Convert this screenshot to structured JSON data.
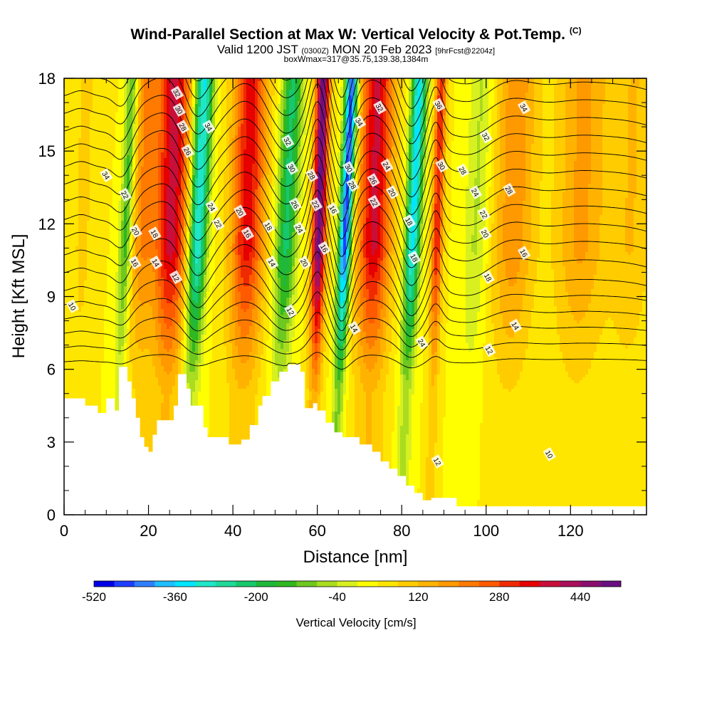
{
  "header": {
    "title": "Wind-Parallel Section at Max W: Vertical Velocity & Pot.Temp.",
    "copyright": "(C)",
    "valid_prefix": "Valid 1200 JST",
    "valid_utc": "(0300Z)",
    "valid_date": "MON 20 Feb 2023",
    "forecast": "[9hrFcst@2204z]",
    "box_info": "boxWmax=317@35.75,139.38,1384m"
  },
  "chart_data": {
    "type": "heatmap",
    "xlabel": "Distance [nm]",
    "ylabel": "Height [Kft MSL]",
    "xlim": [
      0,
      138
    ],
    "ylim": [
      0,
      18
    ],
    "xticks": [
      0,
      20,
      40,
      60,
      80,
      100,
      120
    ],
    "yticks": [
      0,
      3,
      6,
      9,
      12,
      15,
      18
    ],
    "colorbar": {
      "title": "Vertical Velocity [cm/s]",
      "range": [
        -520,
        520
      ],
      "tick_values": [
        -520,
        -360,
        -200,
        -40,
        120,
        280,
        440
      ],
      "colors": [
        "#0000e6",
        "#1f3fff",
        "#2f7fff",
        "#1fbfff",
        "#00e6ff",
        "#1fe6c8",
        "#1ed99a",
        "#17c86c",
        "#1fb83a",
        "#2fb81f",
        "#6fc81f",
        "#aadc1f",
        "#d8f01f",
        "#ffff00",
        "#ffe600",
        "#ffcc00",
        "#ffb300",
        "#ff9900",
        "#ff7a00",
        "#ff5a00",
        "#f02a00",
        "#e60000",
        "#c80f3a",
        "#aa0f5a",
        "#8a0f6e",
        "#6a0f82"
      ]
    },
    "updrafts": [
      {
        "x": 4,
        "w": 2,
        "v": 60
      },
      {
        "x": 18,
        "w": 3,
        "v": 150
      },
      {
        "x": 25,
        "w": 4,
        "v": 340
      },
      {
        "x": 43,
        "w": 4,
        "v": 300
      },
      {
        "x": 60,
        "w": 1.6,
        "v": 470
      },
      {
        "x": 73,
        "w": 4,
        "v": 330
      },
      {
        "x": 88,
        "w": 1.3,
        "v": 280
      },
      {
        "x": 106,
        "w": 5,
        "v": 150
      },
      {
        "x": 122,
        "w": 6,
        "v": 130
      },
      {
        "x": 134,
        "w": 5,
        "v": 80
      }
    ],
    "downdrafts": [
      {
        "x": 14,
        "w": 1.5,
        "v": -200
      },
      {
        "x": 31,
        "w": 2.2,
        "v": -380
      },
      {
        "x": 52,
        "w": 2.5,
        "v": -250
      },
      {
        "x": 66,
        "w": 1.5,
        "v": -520
      },
      {
        "x": 82,
        "w": 1.8,
        "v": -380
      },
      {
        "x": 97,
        "w": 3,
        "v": -90
      }
    ],
    "terrain": [
      [
        0,
        4.8
      ],
      [
        5,
        4.8
      ],
      [
        5,
        4.5
      ],
      [
        8,
        4.5
      ],
      [
        8,
        4.2
      ],
      [
        10,
        4.2
      ],
      [
        10,
        4.8
      ],
      [
        12,
        4.8
      ],
      [
        12,
        4.3
      ],
      [
        13,
        4.3
      ],
      [
        13,
        6.1
      ],
      [
        15,
        6.1
      ],
      [
        15,
        5.5
      ],
      [
        16,
        5.5
      ],
      [
        16,
        4.8
      ],
      [
        17,
        4.8
      ],
      [
        17,
        4.0
      ],
      [
        18,
        4.0
      ],
      [
        18,
        3.2
      ],
      [
        19,
        3.2
      ],
      [
        19,
        2.8
      ],
      [
        20,
        2.8
      ],
      [
        20,
        2.6
      ],
      [
        21,
        2.6
      ],
      [
        21,
        3.3
      ],
      [
        22,
        3.3
      ],
      [
        22,
        3.9
      ],
      [
        26,
        3.9
      ],
      [
        26,
        4.5
      ],
      [
        27,
        4.5
      ],
      [
        27,
        5.8
      ],
      [
        29,
        5.8
      ],
      [
        29,
        5.2
      ],
      [
        30,
        5.2
      ],
      [
        30,
        4.5
      ],
      [
        33,
        4.5
      ],
      [
        33,
        3.6
      ],
      [
        34,
        3.6
      ],
      [
        34,
        3.2
      ],
      [
        39,
        3.2
      ],
      [
        39,
        2.9
      ],
      [
        42,
        2.9
      ],
      [
        42,
        3.1
      ],
      [
        44,
        3.1
      ],
      [
        44,
        3.7
      ],
      [
        46,
        3.7
      ],
      [
        46,
        4.5
      ],
      [
        47,
        4.5
      ],
      [
        47,
        4.9
      ],
      [
        49,
        4.9
      ],
      [
        49,
        5.5
      ],
      [
        51,
        5.5
      ],
      [
        51,
        5.9
      ],
      [
        53,
        5.9
      ],
      [
        53,
        6.2
      ],
      [
        56,
        6.2
      ],
      [
        56,
        5.9
      ],
      [
        57,
        5.9
      ],
      [
        57,
        4.4
      ],
      [
        59,
        4.4
      ],
      [
        59,
        4.6
      ],
      [
        60,
        4.6
      ],
      [
        60,
        4.3
      ],
      [
        62,
        4.3
      ],
      [
        62,
        3.8
      ],
      [
        64,
        3.8
      ],
      [
        64,
        3.4
      ],
      [
        66,
        3.4
      ],
      [
        66,
        3.2
      ],
      [
        70,
        3.2
      ],
      [
        70,
        2.9
      ],
      [
        73,
        2.9
      ],
      [
        73,
        2.6
      ],
      [
        75,
        2.6
      ],
      [
        75,
        2.2
      ],
      [
        77,
        2.2
      ],
      [
        77,
        1.9
      ],
      [
        79,
        1.9
      ],
      [
        79,
        1.6
      ],
      [
        81,
        1.6
      ],
      [
        81,
        1.2
      ],
      [
        83,
        1.2
      ],
      [
        83,
        0.9
      ],
      [
        85,
        0.9
      ],
      [
        85,
        0.6
      ],
      [
        87,
        0.6
      ],
      [
        87,
        0.7
      ],
      [
        89,
        0.7
      ],
      [
        89,
        0.7
      ],
      [
        91,
        0.7
      ],
      [
        91,
        0.7
      ],
      [
        93,
        0.7
      ],
      [
        93,
        0.35
      ],
      [
        138,
        0.35
      ]
    ],
    "contour_labels": [
      {
        "x": 2,
        "y": 8.6,
        "t": "10"
      },
      {
        "x": 10,
        "y": 14.0,
        "t": "34"
      },
      {
        "x": 14.5,
        "y": 13.2,
        "t": "22"
      },
      {
        "x": 17,
        "y": 11.7,
        "t": "20"
      },
      {
        "x": 16.8,
        "y": 10.4,
        "t": "16"
      },
      {
        "x": 21.5,
        "y": 11.6,
        "t": "18"
      },
      {
        "x": 21.8,
        "y": 10.4,
        "t": "14"
      },
      {
        "x": 26.5,
        "y": 9.8,
        "t": "12"
      },
      {
        "x": 26.8,
        "y": 17.4,
        "t": "32"
      },
      {
        "x": 27.3,
        "y": 16.7,
        "t": "30"
      },
      {
        "x": 28.2,
        "y": 16.0,
        "t": "28"
      },
      {
        "x": 29.3,
        "y": 15.0,
        "t": "26"
      },
      {
        "x": 34.3,
        "y": 16.0,
        "t": "34"
      },
      {
        "x": 35.0,
        "y": 12.7,
        "t": "24"
      },
      {
        "x": 36.5,
        "y": 12.0,
        "t": "22"
      },
      {
        "x": 41.7,
        "y": 12.5,
        "t": "20"
      },
      {
        "x": 43.5,
        "y": 11.6,
        "t": "16"
      },
      {
        "x": 48.5,
        "y": 11.9,
        "t": "18"
      },
      {
        "x": 49.3,
        "y": 10.4,
        "t": "14"
      },
      {
        "x": 53.0,
        "y": 15.4,
        "t": "32"
      },
      {
        "x": 54.0,
        "y": 14.3,
        "t": "30"
      },
      {
        "x": 54.8,
        "y": 12.8,
        "t": "26"
      },
      {
        "x": 55.8,
        "y": 11.8,
        "t": "24"
      },
      {
        "x": 57.0,
        "y": 10.4,
        "t": "20"
      },
      {
        "x": 53.7,
        "y": 8.4,
        "t": "12"
      },
      {
        "x": 58.7,
        "y": 14.0,
        "t": "28"
      },
      {
        "x": 59.7,
        "y": 12.8,
        "t": "22"
      },
      {
        "x": 61.7,
        "y": 11.0,
        "t": "16"
      },
      {
        "x": 63.8,
        "y": 12.6,
        "t": "16"
      },
      {
        "x": 67.5,
        "y": 14.3,
        "t": "30"
      },
      {
        "x": 68.4,
        "y": 13.6,
        "t": "28"
      },
      {
        "x": 70.0,
        "y": 16.2,
        "t": "34"
      },
      {
        "x": 73.3,
        "y": 13.8,
        "t": "26"
      },
      {
        "x": 74.8,
        "y": 16.8,
        "t": "32"
      },
      {
        "x": 76.5,
        "y": 14.4,
        "t": "24"
      },
      {
        "x": 73.5,
        "y": 12.9,
        "t": "22"
      },
      {
        "x": 77.8,
        "y": 13.3,
        "t": "20"
      },
      {
        "x": 81.8,
        "y": 12.1,
        "t": "18"
      },
      {
        "x": 83.0,
        "y": 10.6,
        "t": "18"
      },
      {
        "x": 68.8,
        "y": 7.7,
        "t": "14"
      },
      {
        "x": 84.8,
        "y": 7.1,
        "t": "24"
      },
      {
        "x": 88.5,
        "y": 2.2,
        "t": "12"
      },
      {
        "x": 88.8,
        "y": 16.9,
        "t": "36"
      },
      {
        "x": 89.5,
        "y": 14.4,
        "t": "30"
      },
      {
        "x": 94.5,
        "y": 14.2,
        "t": "28"
      },
      {
        "x": 97.5,
        "y": 13.3,
        "t": "24"
      },
      {
        "x": 99.5,
        "y": 12.4,
        "t": "22"
      },
      {
        "x": 99.8,
        "y": 11.6,
        "t": "20"
      },
      {
        "x": 100.5,
        "y": 9.8,
        "t": "18"
      },
      {
        "x": 100.0,
        "y": 15.6,
        "t": "32"
      },
      {
        "x": 105.5,
        "y": 13.4,
        "t": "28"
      },
      {
        "x": 107.0,
        "y": 7.8,
        "t": "14"
      },
      {
        "x": 100.8,
        "y": 6.8,
        "t": "12"
      },
      {
        "x": 109.0,
        "y": 10.8,
        "t": "16"
      },
      {
        "x": 109.0,
        "y": 16.8,
        "t": "34"
      },
      {
        "x": 115.0,
        "y": 2.5,
        "t": "10"
      }
    ]
  }
}
